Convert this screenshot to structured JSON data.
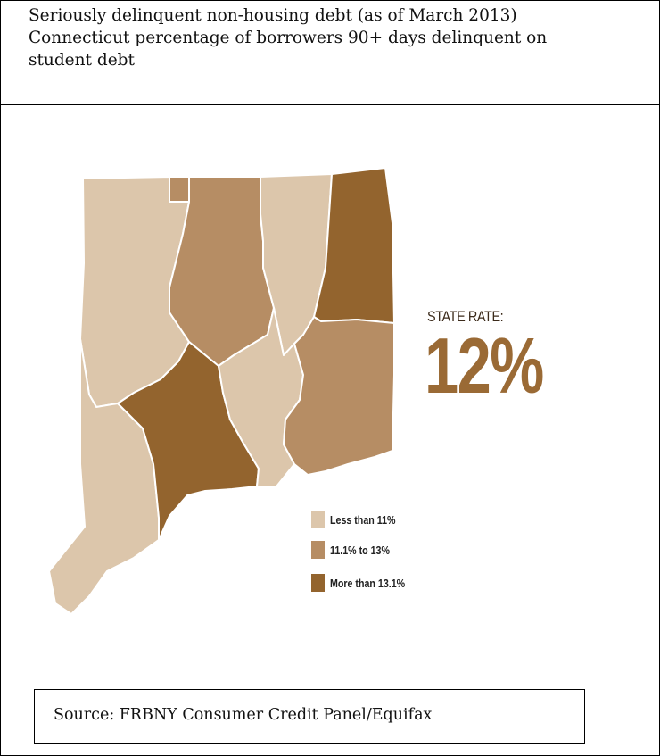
{
  "header": {
    "line1": "Seriously delinquent non-housing debt (as of March 2013)",
    "line2": "Connecticut percentage of borrowers 90+ days delinquent on",
    "line3": "student debt"
  },
  "state_rate": {
    "label": "STATE RATE:",
    "value": "12%"
  },
  "legend": [
    {
      "label": "Less than 11%",
      "color": "#dcc6ab"
    },
    {
      "label": "11.1% to 13%",
      "color": "#b68d64"
    },
    {
      "label": "More than 13.1%",
      "color": "#93642e"
    }
  ],
  "counties": [
    {
      "name": "Litchfield",
      "category": "Less than 11%"
    },
    {
      "name": "Hartford",
      "category": "11.1% to 13%"
    },
    {
      "name": "Tolland",
      "category": "Less than 11%"
    },
    {
      "name": "Windham",
      "category": "More than 13.1%"
    },
    {
      "name": "Fairfield",
      "category": "Less than 11%"
    },
    {
      "name": "New Haven",
      "category": "More than 13.1%"
    },
    {
      "name": "Middlesex",
      "category": "Less than 11%"
    },
    {
      "name": "New London",
      "category": "11.1% to 13%"
    }
  ],
  "source": "Source: FRBNY Consumer Credit Panel/Equifax"
}
